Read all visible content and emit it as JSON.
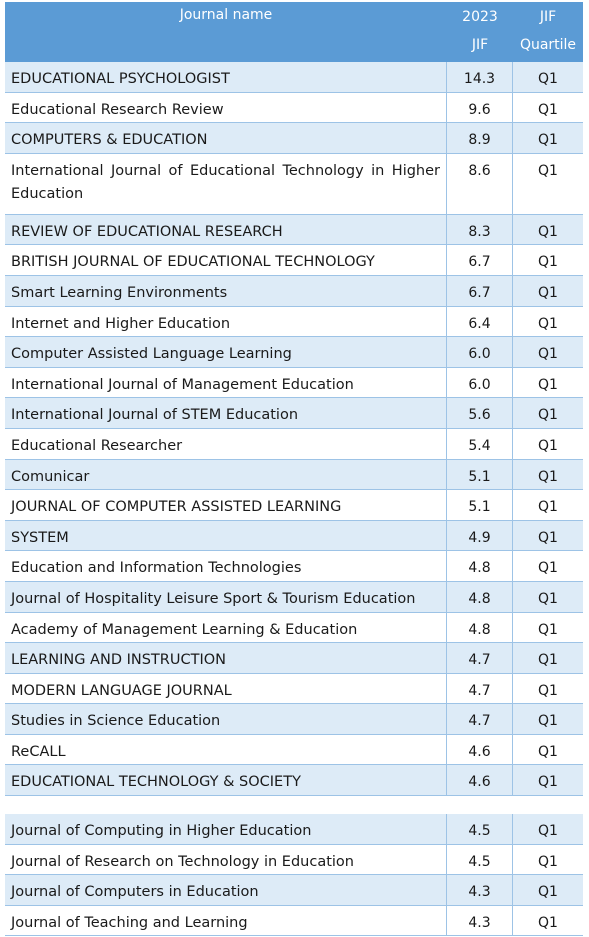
{
  "header": {
    "col_name": "Journal name",
    "col_jif_line1": "2023",
    "col_jif_line2": "JIF",
    "col_q_line1": "JIF",
    "col_q_line2": "Quartile"
  },
  "rows": [
    {
      "name": "EDUCATIONAL PSYCHOLOGIST",
      "jif": "14.3",
      "q": "Q1"
    },
    {
      "name": "Educational Research Review",
      "jif": "9.6",
      "q": "Q1"
    },
    {
      "name": "COMPUTERS & EDUCATION",
      "jif": "8.9",
      "q": "Q1"
    },
    {
      "name": "International Journal of Educational Technology in Higher Education",
      "jif": "8.6",
      "q": "Q1"
    },
    {
      "name": "REVIEW OF EDUCATIONAL RESEARCH",
      "jif": "8.3",
      "q": "Q1"
    },
    {
      "name": "BRITISH JOURNAL OF EDUCATIONAL TECHNOLOGY",
      "jif": "6.7",
      "q": "Q1"
    },
    {
      "name": "Smart Learning Environments",
      "jif": "6.7",
      "q": "Q1"
    },
    {
      "name": "Internet and Higher Education",
      "jif": "6.4",
      "q": "Q1"
    },
    {
      "name": "Computer Assisted Language Learning",
      "jif": "6.0",
      "q": "Q1"
    },
    {
      "name": "International Journal of Management Education",
      "jif": "6.0",
      "q": "Q1"
    },
    {
      "name": "International Journal of STEM Education",
      "jif": "5.6",
      "q": "Q1"
    },
    {
      "name": "Educational Researcher",
      "jif": "5.4",
      "q": "Q1"
    },
    {
      "name": "Comunicar",
      "jif": "5.1",
      "q": "Q1"
    },
    {
      "name": "JOURNAL OF COMPUTER ASSISTED LEARNING",
      "jif": "5.1",
      "q": "Q1"
    },
    {
      "name": "SYSTEM",
      "jif": "4.9",
      "q": "Q1"
    },
    {
      "name": "Education and Information Technologies",
      "jif": "4.8",
      "q": "Q1"
    },
    {
      "name": "Journal of Hospitality Leisure Sport & Tourism Education",
      "jif": "4.8",
      "q": "Q1"
    },
    {
      "name": "Academy of Management Learning & Education",
      "jif": "4.8",
      "q": "Q1"
    },
    {
      "name": "LEARNING AND INSTRUCTION",
      "jif": "4.7",
      "q": "Q1"
    },
    {
      "name": "MODERN LANGUAGE JOURNAL",
      "jif": "4.7",
      "q": "Q1"
    },
    {
      "name": "Studies in Science Education",
      "jif": "4.7",
      "q": "Q1"
    },
    {
      "name": "ReCALL",
      "jif": "4.6",
      "q": "Q1"
    },
    {
      "name": "EDUCATIONAL TECHNOLOGY & SOCIETY",
      "jif": "4.6",
      "q": "Q1"
    }
  ],
  "rows_after_gap": [
    {
      "name": "Journal of Computing in Higher Education",
      "jif": "4.5",
      "q": "Q1"
    },
    {
      "name": "Journal of Research on Technology in Education",
      "jif": "4.5",
      "q": "Q1"
    },
    {
      "name": "Journal of Computers in Education",
      "jif": "4.3",
      "q": "Q1"
    },
    {
      "name": "Journal of Teaching and Learning",
      "jif": "4.3",
      "q": "Q1"
    }
  ]
}
